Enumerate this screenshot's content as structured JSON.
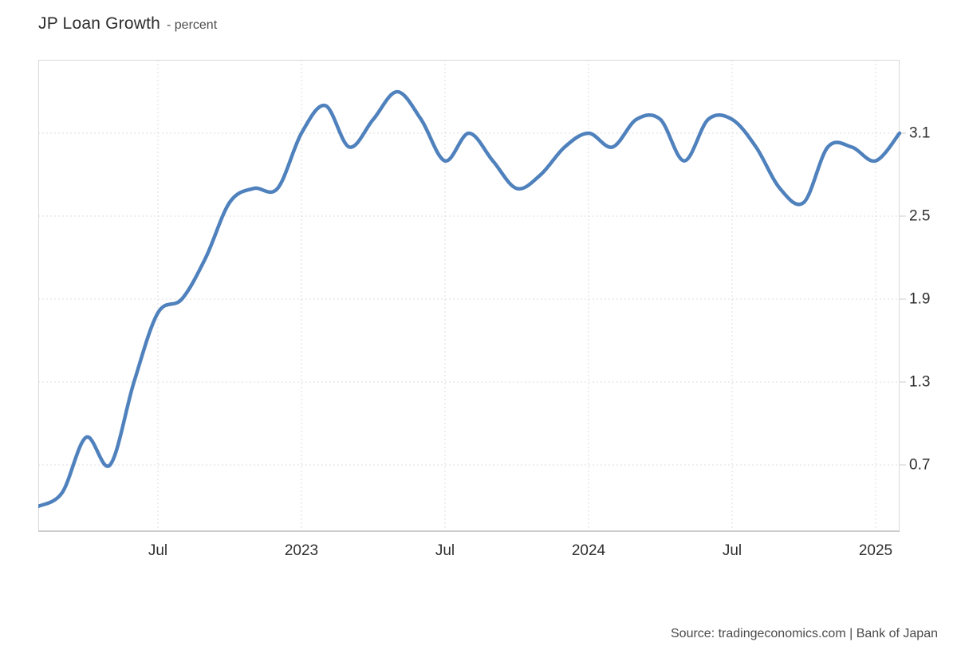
{
  "header": {
    "title": "JP Loan Growth",
    "subtitle": "- percent"
  },
  "source": {
    "text": "Source: tradingeconomics.com | Bank of Japan"
  },
  "colors": {
    "background": "#ffffff",
    "line": "#4f81bd",
    "grid": "#dedede",
    "border": "#d9d9d9",
    "tick": "#cccccc",
    "title_text": "#2d2d2d",
    "subtitle_text": "#4d4d4d",
    "axis_text": "#2f2f2f",
    "source_text": "#4a4a4a"
  },
  "chart_data": {
    "type": "line",
    "title": "JP Loan Growth",
    "ylabel": "percent",
    "smooth": true,
    "line_width": 4.5,
    "x": [
      "2022-02",
      "2022-03",
      "2022-04",
      "2022-05",
      "2022-06",
      "2022-07",
      "2022-08",
      "2022-09",
      "2022-10",
      "2022-11",
      "2022-12",
      "2023-01",
      "2023-02",
      "2023-03",
      "2023-04",
      "2023-05",
      "2023-06",
      "2023-07",
      "2023-08",
      "2023-09",
      "2023-10",
      "2023-11",
      "2023-12",
      "2024-01",
      "2024-02",
      "2024-03",
      "2024-04",
      "2024-05",
      "2024-06",
      "2024-07",
      "2024-08",
      "2024-09",
      "2024-10",
      "2024-11",
      "2024-12",
      "2025-01",
      "2025-02"
    ],
    "values": [
      0.4,
      0.5,
      0.9,
      0.7,
      1.3,
      1.8,
      1.9,
      2.2,
      2.6,
      2.7,
      2.7,
      3.1,
      3.3,
      3.0,
      3.2,
      3.4,
      3.2,
      2.9,
      3.1,
      2.9,
      2.7,
      2.8,
      3.0,
      3.1,
      3.0,
      3.2,
      3.2,
      2.9,
      3.2,
      3.2,
      3.0,
      2.7,
      2.6,
      3.0,
      3.0,
      2.9,
      3.1
    ],
    "y_axis": {
      "side": "right",
      "ticks": [
        3.1,
        2.5,
        1.9,
        1.3,
        0.7
      ],
      "range": [
        0.215,
        3.631
      ],
      "grid": "dotted"
    },
    "x_axis": {
      "ticks": [
        {
          "label": "Jul",
          "index": 5
        },
        {
          "label": "2023",
          "index": 11
        },
        {
          "label": "Jul",
          "index": 17
        },
        {
          "label": "2024",
          "index": 23
        },
        {
          "label": "Jul",
          "index": 29
        },
        {
          "label": "2025",
          "index": 35
        }
      ],
      "grid": "dotted"
    }
  }
}
